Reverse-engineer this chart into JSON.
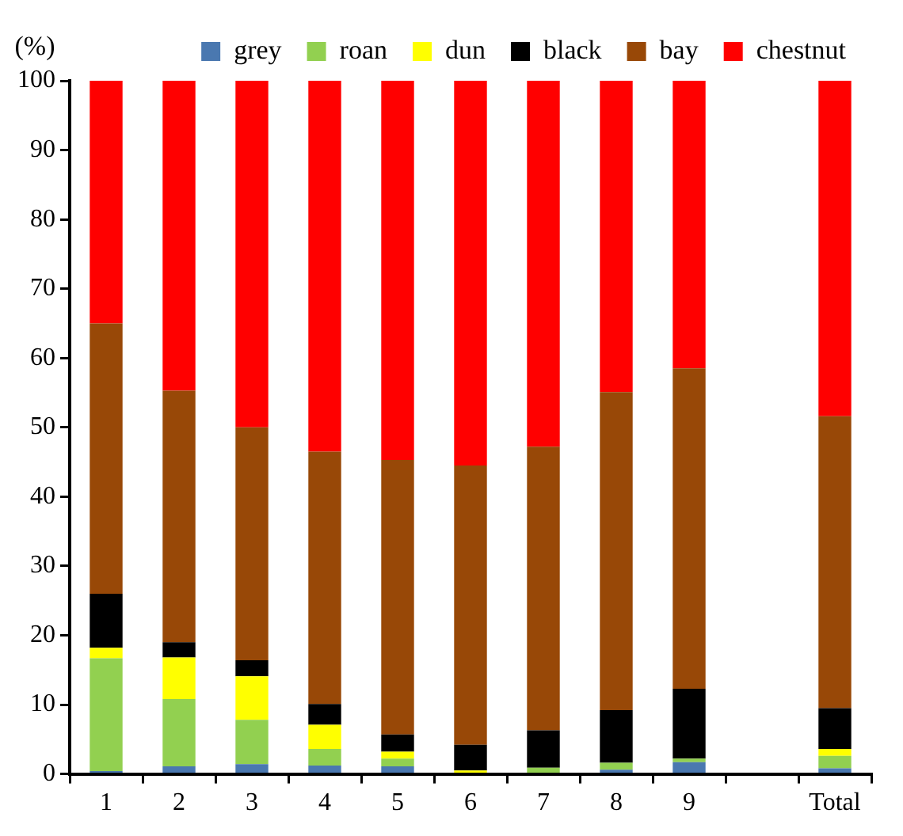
{
  "chart_data": {
    "type": "bar",
    "stacked": true,
    "ylabel": "(%)",
    "categories": [
      "1",
      "2",
      "3",
      "4",
      "5",
      "6",
      "7",
      "8",
      "9",
      null,
      "Total"
    ],
    "series": [
      {
        "name": "grey",
        "color": "#4a78b0",
        "values": [
          0.4,
          1.1,
          1.4,
          1.2,
          1.1,
          0,
          0,
          0.6,
          1.7,
          null,
          0.8
        ]
      },
      {
        "name": "roan",
        "color": "#92d050",
        "values": [
          16.3,
          9.7,
          6.4,
          2.4,
          1.1,
          null,
          0.9,
          1.0,
          0.5,
          null,
          1.8
        ]
      },
      {
        "name": "dun",
        "color": "#ffff00",
        "values": [
          1.5,
          6.0,
          6.3,
          3.5,
          1.0,
          0.5,
          0,
          0,
          0,
          null,
          1.0
        ]
      },
      {
        "name": "black",
        "color": "#000000",
        "values": [
          7.8,
          2.2,
          2.3,
          3.0,
          2.5,
          3.7,
          5.4,
          7.6,
          10.1,
          null,
          5.9
        ]
      },
      {
        "name": "bay",
        "color": "#984807",
        "values": [
          39,
          36.3,
          33.6,
          36.4,
          39.6,
          40.3,
          40.9,
          45.9,
          46.2,
          null,
          42.1
        ]
      },
      {
        "name": "chestnut",
        "color": "#ff0000",
        "values": [
          35,
          44.7,
          50,
          53.5,
          54.7,
          55.5,
          52.8,
          44.9,
          41.5,
          null,
          48.4
        ]
      }
    ],
    "ylim": [
      0,
      100
    ],
    "yticks": [
      0,
      10,
      20,
      30,
      40,
      50,
      60,
      70,
      80,
      90,
      100
    ],
    "grid": false,
    "legend": "top"
  }
}
